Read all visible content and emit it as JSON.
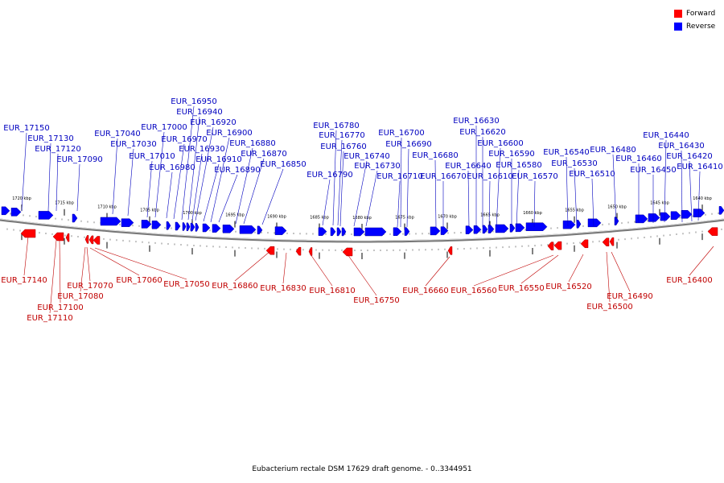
{
  "legend": {
    "forward_label": "Forward",
    "reverse_label": "Reverse",
    "forward_color": "#ff0000",
    "reverse_color": "#0000ff"
  },
  "caption": "Eubacterium rectale DSM 17629 draft genome. - 0..3344951",
  "track": {
    "direction": "decreasing-left-to-right",
    "ticks": [
      "1720 kbp",
      "1715 kbp",
      "1710 kbp",
      "1705 kbp",
      "1700 kbp",
      "1695 kbp",
      "1690 kbp",
      "1685 kbp",
      "1680 kbp",
      "1675 kbp",
      "1670 kbp",
      "1665 kbp",
      "1660 kbp",
      "1655 kbp",
      "1650 kbp",
      "1645 kbp",
      "1640 kbp"
    ]
  },
  "reverse_genes": [
    "EUR_17150",
    "EUR_17130",
    "EUR_17120",
    "EUR_17090",
    "EUR_17040",
    "EUR_17030",
    "EUR_17010",
    "EUR_17000",
    "EUR_16980",
    "EUR_16970",
    "EUR_16950",
    "EUR_16940",
    "EUR_16930",
    "EUR_16920",
    "EUR_16910",
    "EUR_16900",
    "EUR_16890",
    "EUR_16880",
    "EUR_16870",
    "EUR_16850",
    "EUR_16790",
    "EUR_16780",
    "EUR_16770",
    "EUR_16760",
    "EUR_16740",
    "EUR_16730",
    "EUR_16710",
    "EUR_16700",
    "EUR_16690",
    "EUR_16680",
    "EUR_16670",
    "EUR_16640",
    "EUR_16630",
    "EUR_16620",
    "EUR_16610",
    "EUR_16600",
    "EUR_16590",
    "EUR_16580",
    "EUR_16570",
    "EUR_16540",
    "EUR_16530",
    "EUR_16510",
    "EUR_16480",
    "EUR_16460",
    "EUR_16450",
    "EUR_16440",
    "EUR_16430",
    "EUR_16420",
    "EUR_16410"
  ],
  "forward_genes": [
    "EUR_17140",
    "EUR_17110",
    "EUR_17100",
    "EUR_17080",
    "EUR_17070",
    "EUR_17060",
    "EUR_17050",
    "EUR_16860",
    "EUR_16830",
    "EUR_16810",
    "EUR_16750",
    "EUR_16660",
    "EUR_16560",
    "EUR_16550",
    "EUR_16520",
    "EUR_16500",
    "EUR_16490",
    "EUR_16400"
  ]
}
